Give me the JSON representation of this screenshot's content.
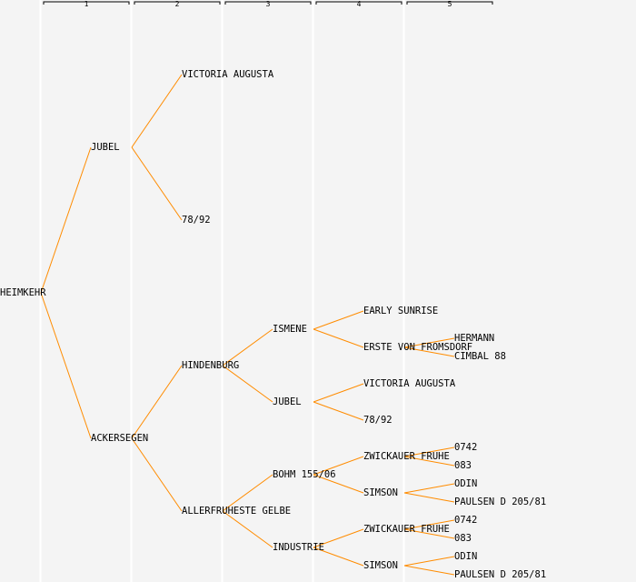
{
  "generations": [
    "1",
    "2",
    "3",
    "4",
    "5"
  ],
  "colors": {
    "line": "#ff8c00",
    "background": "#f4f4f4",
    "divider": "#ffffff"
  },
  "tree": {
    "name": "HEIMKEHR",
    "parents": [
      {
        "name": "JUBEL",
        "parents": [
          {
            "name": "VICTORIA AUGUSTA"
          },
          {
            "name": "78/92"
          }
        ]
      },
      {
        "name": "ACKERSEGEN",
        "parents": [
          {
            "name": "HINDENBURG",
            "parents": [
              {
                "name": "ISMENE",
                "parents": [
                  {
                    "name": "EARLY SUNRISE"
                  },
                  {
                    "name": "ERSTE VON FROMSDORF",
                    "parents": [
                      {
                        "name": "HERMANN"
                      },
                      {
                        "name": "CIMBAL 88"
                      }
                    ]
                  }
                ]
              },
              {
                "name": "JUBEL",
                "parents": [
                  {
                    "name": "VICTORIA AUGUSTA"
                  },
                  {
                    "name": "78/92"
                  }
                ]
              }
            ]
          },
          {
            "name": "ALLERFRUHESTE GELBE",
            "parents": [
              {
                "name": "BOHM 155/06",
                "parents": [
                  {
                    "name": "ZWICKAUER FRUHE",
                    "parents": [
                      {
                        "name": "0742"
                      },
                      {
                        "name": "083"
                      }
                    ]
                  },
                  {
                    "name": "SIMSON",
                    "parents": [
                      {
                        "name": "ODIN"
                      },
                      {
                        "name": "PAULSEN D 205/81"
                      }
                    ]
                  }
                ]
              },
              {
                "name": "INDUSTRIE",
                "parents": [
                  {
                    "name": "ZWICKAUER FRUHE",
                    "parents": [
                      {
                        "name": "0742"
                      },
                      {
                        "name": "083"
                      }
                    ]
                  },
                  {
                    "name": "SIMSON",
                    "parents": [
                      {
                        "name": "ODIN"
                      },
                      {
                        "name": "PAULSEN D 205/81"
                      }
                    ]
                  }
                ]
              }
            ]
          }
        ]
      }
    ]
  }
}
